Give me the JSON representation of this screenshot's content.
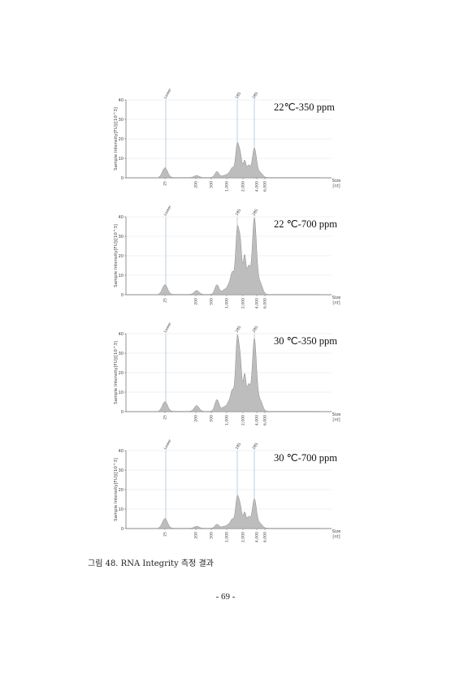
{
  "figure": {
    "caption": "그림 48. RNA Integrity 측정 결과",
    "page_number": "- 69 -"
  },
  "colors": {
    "trace_fill": "#bdbdbd",
    "trace_stroke": "#8c8c8c",
    "marker_line": "#a8c6de",
    "grid": "#e4e4e4"
  },
  "chart_data": [
    {
      "type": "area",
      "condition_label": "22℃-350 ppm",
      "ylabel": "Sample Intensity[FU]([10^3]",
      "xlabel": "Size [nt]",
      "ylim": [
        0,
        40
      ],
      "yticks": [
        "0",
        "10",
        "20",
        "30",
        "40"
      ],
      "xticks": [
        "25",
        "200",
        "500",
        "1,000",
        "2,000",
        "4,000",
        "6,000"
      ],
      "markers": [
        "Lower",
        "18S",
        "28S"
      ],
      "peaks": [
        {
          "size": "25",
          "intensity": 5
        },
        {
          "size": "200",
          "intensity": 1
        },
        {
          "size": "500",
          "intensity": 3
        },
        {
          "size": "18S",
          "intensity": 17
        },
        {
          "size": "28S",
          "intensity": 15
        }
      ]
    },
    {
      "type": "area",
      "condition_label": "22 ℃-700 ppm",
      "ylabel": "Sample Intensity[FU]([10^3]",
      "xlabel": "Size [nt]",
      "ylim": [
        0,
        40
      ],
      "yticks": [
        "0",
        "10",
        "20",
        "30",
        "40"
      ],
      "xticks": [
        "25",
        "200",
        "500",
        "1,000",
        "2,000",
        "4,000",
        "6,000"
      ],
      "markers": [
        "Lower",
        "18S",
        "28S"
      ],
      "peaks": [
        {
          "size": "25",
          "intensity": 5
        },
        {
          "size": "200",
          "intensity": 2
        },
        {
          "size": "500",
          "intensity": 5
        },
        {
          "size": "18S",
          "intensity": 33
        },
        {
          "size": "28S",
          "intensity": 39
        }
      ]
    },
    {
      "type": "area",
      "condition_label": "30 ℃-350 ppm",
      "ylabel": "Sample Intensity[FU]([10^3]",
      "xlabel": "Size [nt]",
      "ylim": [
        0,
        40
      ],
      "yticks": [
        "0",
        "10",
        "20",
        "30",
        "40"
      ],
      "xticks": [
        "25",
        "200",
        "500",
        "1,000",
        "2,000",
        "4,000",
        "6,000"
      ],
      "markers": [
        "Lower",
        "18S",
        "28S"
      ],
      "peaks": [
        {
          "size": "25",
          "intensity": 5
        },
        {
          "size": "200",
          "intensity": 3
        },
        {
          "size": "500",
          "intensity": 6
        },
        {
          "size": "18S",
          "intensity": 37
        },
        {
          "size": "28S",
          "intensity": 37
        }
      ]
    },
    {
      "type": "area",
      "condition_label": "30 ℃-700 ppm",
      "ylabel": "Sample Intensity[FU]([10^3]",
      "xlabel": "Size [nt]",
      "ylim": [
        0,
        40
      ],
      "yticks": [
        "0",
        "10",
        "20",
        "30",
        "40"
      ],
      "xticks": [
        "25",
        "200",
        "500",
        "1,000",
        "2,000",
        "4,000",
        "6,000"
      ],
      "markers": [
        "Lower",
        "18S",
        "28S"
      ],
      "peaks": [
        {
          "size": "25",
          "intensity": 5
        },
        {
          "size": "200",
          "intensity": 1
        },
        {
          "size": "500",
          "intensity": 2
        },
        {
          "size": "18S",
          "intensity": 16
        },
        {
          "size": "28S",
          "intensity": 15
        }
      ]
    }
  ]
}
